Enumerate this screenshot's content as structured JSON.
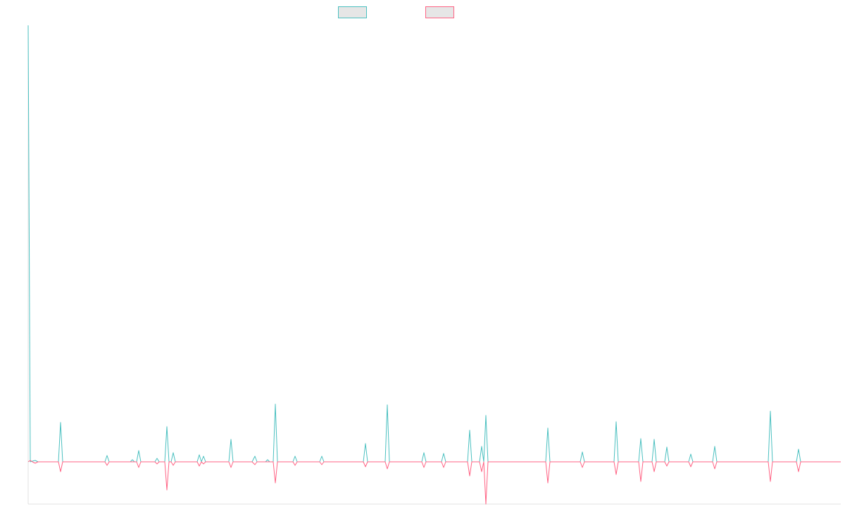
{
  "chart_data": {
    "type": "line",
    "title": "",
    "xlabel": "",
    "ylabel": "",
    "grid": false,
    "legend_position": "top-center",
    "x_range": [
      0,
      1154
    ],
    "ylim": [
      -60,
      620
    ],
    "series": [
      {
        "color": "#4bc0c0",
        "fill": "#e6e6e6",
        "points": [
          [
            0,
            620
          ],
          [
            3,
            0
          ],
          [
            6,
            1
          ],
          [
            10,
            2
          ],
          [
            14,
            0
          ],
          [
            43,
            0
          ],
          [
            46,
            56
          ],
          [
            49,
            0
          ],
          [
            109,
            0
          ],
          [
            112,
            9
          ],
          [
            115,
            0
          ],
          [
            145,
            0
          ],
          [
            148,
            3
          ],
          [
            151,
            0
          ],
          [
            154,
            0
          ],
          [
            157,
            16
          ],
          [
            160,
            0
          ],
          [
            180,
            0
          ],
          [
            183,
            5
          ],
          [
            186,
            0
          ],
          [
            194,
            0
          ],
          [
            197,
            50
          ],
          [
            200,
            0
          ],
          [
            203,
            0
          ],
          [
            206,
            13
          ],
          [
            209,
            0
          ],
          [
            240,
            0
          ],
          [
            243,
            10
          ],
          [
            246,
            0
          ],
          [
            249,
            8
          ],
          [
            252,
            0
          ],
          [
            285,
            0
          ],
          [
            288,
            32
          ],
          [
            291,
            0
          ],
          [
            318,
            0
          ],
          [
            322,
            8
          ],
          [
            325,
            0
          ],
          [
            337,
            0
          ],
          [
            340,
            3
          ],
          [
            343,
            0
          ],
          [
            348,
            0
          ],
          [
            351,
            82
          ],
          [
            354,
            0
          ],
          [
            376,
            0
          ],
          [
            379,
            8
          ],
          [
            382,
            0
          ],
          [
            414,
            0
          ],
          [
            417,
            8
          ],
          [
            420,
            0
          ],
          [
            476,
            0
          ],
          [
            479,
            26
          ],
          [
            482,
            0
          ],
          [
            507,
            0
          ],
          [
            510,
            81
          ],
          [
            513,
            0
          ],
          [
            559,
            0
          ],
          [
            562,
            13
          ],
          [
            565,
            0
          ],
          [
            587,
            0
          ],
          [
            590,
            12
          ],
          [
            593,
            0
          ],
          [
            624,
            0
          ],
          [
            627,
            45
          ],
          [
            630,
            0
          ],
          [
            641,
            0
          ],
          [
            644,
            22
          ],
          [
            647,
            0
          ],
          [
            647,
            0
          ],
          [
            650,
            66
          ],
          [
            653,
            0
          ],
          [
            735,
            0
          ],
          [
            738,
            48
          ],
          [
            741,
            0
          ],
          [
            784,
            0
          ],
          [
            787,
            14
          ],
          [
            790,
            0
          ],
          [
            832,
            0
          ],
          [
            835,
            57
          ],
          [
            838,
            0
          ],
          [
            867,
            0
          ],
          [
            870,
            33
          ],
          [
            873,
            0
          ],
          [
            886,
            0
          ],
          [
            889,
            32
          ],
          [
            892,
            0
          ],
          [
            904,
            0
          ],
          [
            907,
            21
          ],
          [
            910,
            0
          ],
          [
            938,
            0
          ],
          [
            941,
            11
          ],
          [
            944,
            0
          ],
          [
            972,
            0
          ],
          [
            975,
            22
          ],
          [
            978,
            0
          ],
          [
            1051,
            0
          ],
          [
            1054,
            72
          ],
          [
            1057,
            0
          ],
          [
            1091,
            0
          ],
          [
            1094,
            18
          ],
          [
            1097,
            0
          ],
          [
            1154,
            0
          ]
        ]
      },
      {
        "color": "#ff6384",
        "fill": "#e6e6e6",
        "points": [
          [
            0,
            0
          ],
          [
            3,
            2
          ],
          [
            6,
            0
          ],
          [
            10,
            -2
          ],
          [
            14,
            0
          ],
          [
            43,
            0
          ],
          [
            46,
            -14
          ],
          [
            49,
            0
          ],
          [
            109,
            0
          ],
          [
            112,
            -5
          ],
          [
            115,
            0
          ],
          [
            154,
            0
          ],
          [
            157,
            -8
          ],
          [
            160,
            0
          ],
          [
            180,
            0
          ],
          [
            183,
            -3
          ],
          [
            186,
            0
          ],
          [
            194,
            0
          ],
          [
            197,
            -40
          ],
          [
            200,
            0
          ],
          [
            203,
            0
          ],
          [
            206,
            -5
          ],
          [
            209,
            0
          ],
          [
            240,
            0
          ],
          [
            243,
            -6
          ],
          [
            246,
            0
          ],
          [
            249,
            -3
          ],
          [
            252,
            0
          ],
          [
            285,
            0
          ],
          [
            288,
            -8
          ],
          [
            291,
            0
          ],
          [
            318,
            0
          ],
          [
            322,
            -4
          ],
          [
            325,
            0
          ],
          [
            348,
            0
          ],
          [
            351,
            -30
          ],
          [
            354,
            0
          ],
          [
            376,
            0
          ],
          [
            379,
            -5
          ],
          [
            382,
            0
          ],
          [
            414,
            0
          ],
          [
            417,
            -4
          ],
          [
            420,
            0
          ],
          [
            476,
            0
          ],
          [
            479,
            -7
          ],
          [
            482,
            0
          ],
          [
            507,
            0
          ],
          [
            510,
            -10
          ],
          [
            513,
            0
          ],
          [
            559,
            0
          ],
          [
            562,
            -8
          ],
          [
            565,
            0
          ],
          [
            587,
            0
          ],
          [
            590,
            -8
          ],
          [
            593,
            0
          ],
          [
            624,
            0
          ],
          [
            627,
            -20
          ],
          [
            630,
            0
          ],
          [
            641,
            0
          ],
          [
            644,
            -14
          ],
          [
            647,
            0
          ],
          [
            647,
            0
          ],
          [
            650,
            -60
          ],
          [
            653,
            0
          ],
          [
            735,
            0
          ],
          [
            738,
            -30
          ],
          [
            741,
            0
          ],
          [
            784,
            0
          ],
          [
            787,
            -8
          ],
          [
            790,
            0
          ],
          [
            832,
            0
          ],
          [
            835,
            -18
          ],
          [
            838,
            0
          ],
          [
            867,
            0
          ],
          [
            870,
            -28
          ],
          [
            873,
            0
          ],
          [
            886,
            0
          ],
          [
            889,
            -14
          ],
          [
            892,
            0
          ],
          [
            904,
            0
          ],
          [
            907,
            -6
          ],
          [
            910,
            0
          ],
          [
            938,
            0
          ],
          [
            941,
            -7
          ],
          [
            944,
            0
          ],
          [
            972,
            0
          ],
          [
            975,
            -10
          ],
          [
            978,
            0
          ],
          [
            1051,
            0
          ],
          [
            1054,
            -28
          ],
          [
            1057,
            0
          ],
          [
            1091,
            0
          ],
          [
            1094,
            -14
          ],
          [
            1097,
            0
          ],
          [
            1154,
            0
          ]
        ]
      }
    ]
  }
}
